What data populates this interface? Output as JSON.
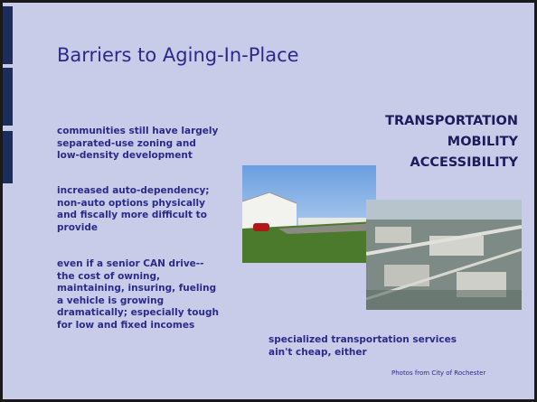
{
  "header": {
    "title": "Barriers to Aging-In-Place"
  },
  "heading": {
    "lines": [
      "TRANSPORTATION",
      "MOBILITY",
      "ACCESSIBILITY"
    ]
  },
  "body": {
    "paragraphs": [
      [
        "communities still have largely",
        "separated-use zoning and",
        "low-density development"
      ],
      [
        "increased auto-dependency;",
        "non-auto options physically",
        "and fiscally more difficult to",
        "provide"
      ],
      [
        "even if a senior CAN drive--",
        "the cost of owning,",
        "maintaining, insuring, fueling",
        "a vehicle is growing",
        "dramatically; especially tough",
        "for low and fixed incomes"
      ]
    ]
  },
  "footer": {
    "lines": [
      "specialized transportation services",
      "ain't cheap, either"
    ]
  },
  "caption": "Photos from City of Rochester"
}
